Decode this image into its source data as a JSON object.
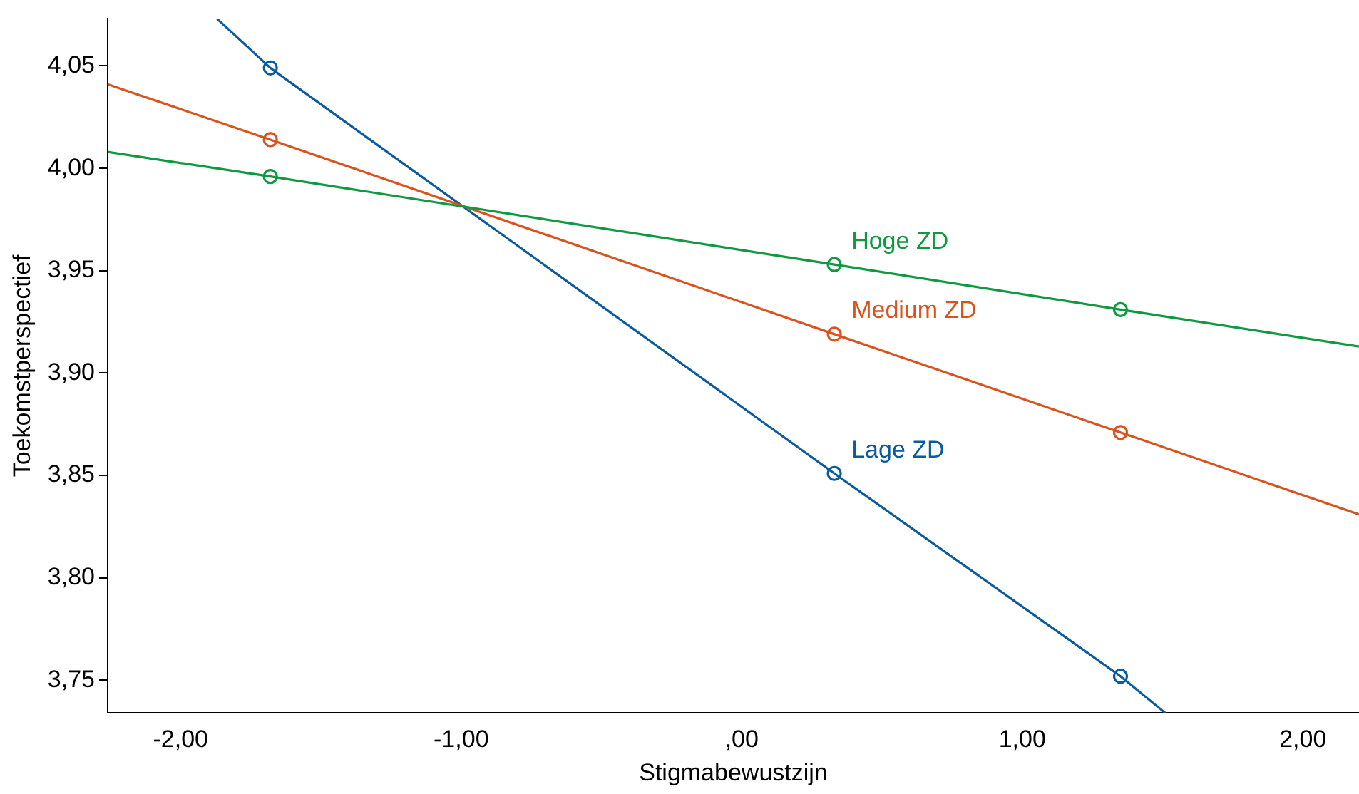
{
  "chart_data": {
    "type": "line",
    "xlabel": "Stigmabewustzijn",
    "ylabel": "Toekomstperspectief",
    "xlim": [
      -2.26,
      2.2
    ],
    "ylim": [
      3.734,
      4.073
    ],
    "xticks": [
      {
        "value": -2,
        "label": "-2,00"
      },
      {
        "value": -1,
        "label": "-1,00"
      },
      {
        "value": 0,
        "label": ",00"
      },
      {
        "value": 1,
        "label": "1,00"
      },
      {
        "value": 2,
        "label": "2,00"
      }
    ],
    "yticks": [
      {
        "value": 3.75,
        "label": "3,75"
      },
      {
        "value": 3.8,
        "label": "3,80"
      },
      {
        "value": 3.85,
        "label": "3,85"
      },
      {
        "value": 3.9,
        "label": "3,90"
      },
      {
        "value": 3.95,
        "label": "3,95"
      },
      {
        "value": 4.0,
        "label": "4,00"
      },
      {
        "value": 4.05,
        "label": "4,05"
      }
    ],
    "grid": false,
    "legend": false,
    "marker": "circle",
    "line_style": "solid",
    "series": [
      {
        "name": "Hoge ZD",
        "color": "#109940",
        "x": [
          -2.26,
          -1.68,
          0.33,
          1.35,
          2.2
        ],
        "values": [
          4.008,
          3.996,
          3.953,
          3.931,
          3.913
        ]
      },
      {
        "name": "Medium ZD",
        "color": "#d9531e",
        "x": [
          -2.26,
          -1.68,
          0.33,
          1.35,
          2.2
        ],
        "values": [
          4.041,
          4.014,
          3.919,
          3.871,
          3.831
        ]
      },
      {
        "name": "Lage ZD",
        "color": "#0b5ba1",
        "x": [
          -1.87,
          -1.68,
          0.33,
          1.35,
          1.51
        ],
        "values": [
          4.073,
          4.049,
          3.851,
          3.752,
          3.734
        ]
      }
    ]
  }
}
